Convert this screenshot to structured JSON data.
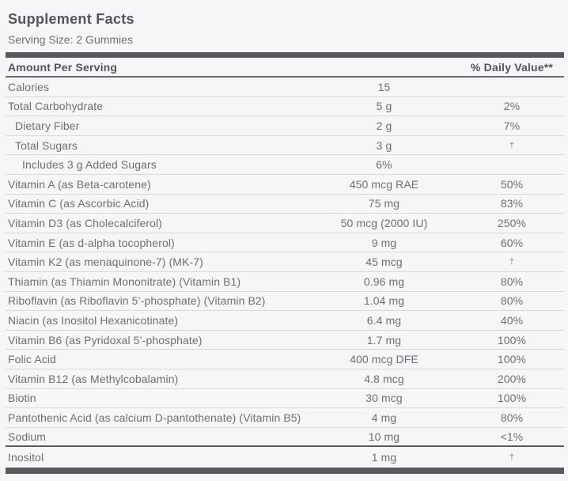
{
  "label": {
    "title": "Supplement Facts",
    "serving_size": "Serving Size: 2 Gummies",
    "header": {
      "amount_per_serving": "Amount Per Serving",
      "daily_value": "% Daily Value**"
    },
    "rows": [
      {
        "name": "Calories",
        "indent": 0,
        "amount": "15",
        "dv": ""
      },
      {
        "name": "Total Carbohydrate",
        "indent": 0,
        "amount": "5 g",
        "dv": "2%"
      },
      {
        "name": "Dietary Fiber",
        "indent": 1,
        "amount": "2 g",
        "dv": "7%"
      },
      {
        "name": "Total Sugars",
        "indent": 1,
        "amount": "3 g",
        "dv": "†"
      },
      {
        "name": "Includes 3 g Added Sugars",
        "indent": 2,
        "amount": "6%",
        "dv": ""
      },
      {
        "name": "Vitamin A (as Beta-carotene)",
        "indent": 0,
        "amount": "450 mcg RAE",
        "dv": "50%"
      },
      {
        "name": "Vitamin C (as Ascorbic Acid)",
        "indent": 0,
        "amount": "75 mg",
        "dv": "83%"
      },
      {
        "name": "Vitamin D3 (as Cholecalciferol)",
        "indent": 0,
        "amount": "50 mcg (2000 IU)",
        "dv": "250%"
      },
      {
        "name": "Vitamin E (as d-alpha tocopherol)",
        "indent": 0,
        "amount": "9 mg",
        "dv": "60%"
      },
      {
        "name": "Vitamin K2 (as menaquinone-7) (MK-7)",
        "indent": 0,
        "amount": "45 mcg",
        "dv": "†"
      },
      {
        "name": "Thiamin (as Thiamin Mononitrate) (Vitamin B1)",
        "indent": 0,
        "amount": "0.96 mg",
        "dv": "80%"
      },
      {
        "name": "Riboflavin (as Riboflavin 5’-phosphate) (Vitamin B2)",
        "indent": 0,
        "amount": "1.04 mg",
        "dv": "80%"
      },
      {
        "name": "Niacin (as Inositol Hexanicotinate)",
        "indent": 0,
        "amount": "6.4 mg",
        "dv": "40%"
      },
      {
        "name": "Vitamin B6 (as Pyridoxal 5’-phosphate)",
        "indent": 0,
        "amount": "1.7 mg",
        "dv": "100%"
      },
      {
        "name": "Folic Acid",
        "indent": 0,
        "amount": "400 mcg DFE",
        "dv": "100%"
      },
      {
        "name": "Vitamin B12 (as Methylcobalamin)",
        "indent": 0,
        "amount": "4.8 mcg",
        "dv": "200%"
      },
      {
        "name": "Biotin",
        "indent": 0,
        "amount": "30 mcg",
        "dv": "100%"
      },
      {
        "name": "Pantothenic Acid (as calcium D-pantothenate) (Vitamin B5)",
        "indent": 0,
        "amount": "4 mg",
        "dv": "80%"
      },
      {
        "name": "Sodium",
        "indent": 0,
        "amount": "10 mg",
        "dv": "<1%",
        "thick_border_after": true
      },
      {
        "name": "Inositol",
        "indent": 0,
        "amount": "1 mg",
        "dv": "†"
      }
    ],
    "colors": {
      "bar": "#58595c",
      "heading_text": "#54555b",
      "body_text": "#6e6f73",
      "row_divider": "#d8d9da",
      "header_underline": "#6b6c6f",
      "background": "#f5f6f7",
      "dagger_text": "#8d8e91"
    }
  }
}
